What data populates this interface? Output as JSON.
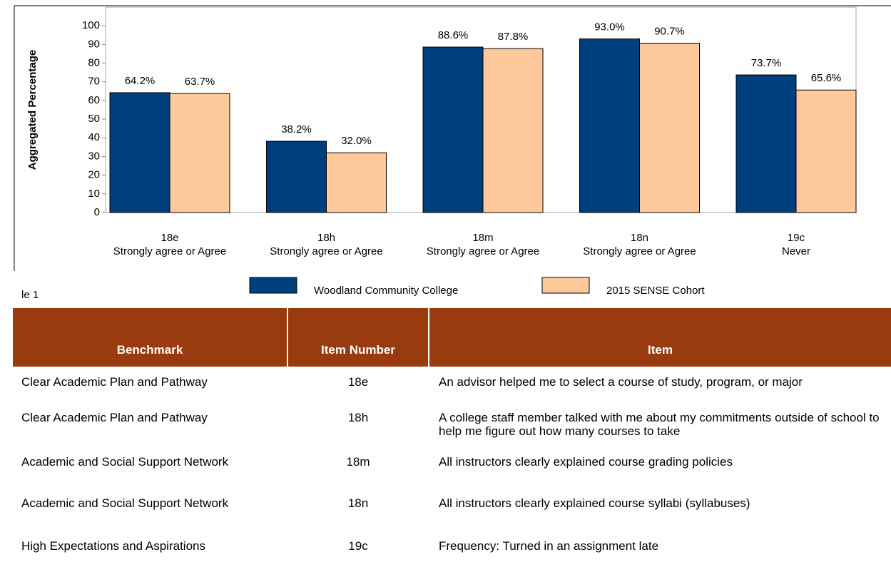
{
  "chart_data": {
    "type": "bar",
    "y_label": "Aggregated Percentage",
    "categories": [
      "18e",
      "18h",
      "18m",
      "18n",
      "19c"
    ],
    "category_descriptions": [
      "Strongly agree or Agree",
      "Strongly agree or Agree",
      "Strongly agree or Agree",
      "Strongly agree or Agree",
      "Never"
    ],
    "series": [
      {
        "name": "Woodland Community College",
        "color": "#003f7d",
        "values": [
          64.2,
          38.2,
          88.6,
          93.0,
          73.7
        ],
        "value_labels": [
          "64.2%",
          "38.2%",
          "88.6%",
          "93.0%",
          "73.7%"
        ]
      },
      {
        "name": "2015 SENSE Cohort",
        "color": "#fdc89a",
        "values": [
          63.7,
          32.0,
          87.8,
          90.7,
          65.6
        ],
        "value_labels": [
          "63.7%",
          "32.0%",
          "87.8%",
          "90.7%",
          "65.6%"
        ]
      }
    ],
    "ylim": [
      0,
      110
    ],
    "yticks": [
      0,
      10,
      20,
      30,
      40,
      50,
      60,
      70,
      80,
      90,
      100
    ],
    "grid": false,
    "legend": "bottom"
  },
  "caption": "le 1",
  "table": {
    "header": [
      "Benchmark",
      "Item Number",
      "Item"
    ],
    "rows": [
      [
        "Clear Academic Plan and Pathway",
        "18e",
        "An advisor helped me to select a course of study, program, or major"
      ],
      [
        "Clear Academic Plan and Pathway",
        "18h",
        "A college staff member talked with me about my commitments outside of school to help me figure out how many courses to take"
      ],
      [
        "Academic and Social Support Network",
        "18m",
        "All instructors clearly explained course grading policies"
      ],
      [
        "Academic and Social Support Network",
        "18n",
        "All instructors clearly explained course syllabi (syllabuses)"
      ],
      [
        "High Expectations and Aspirations",
        "19c",
        "Frequency: Turned in an assignment late"
      ]
    ]
  }
}
